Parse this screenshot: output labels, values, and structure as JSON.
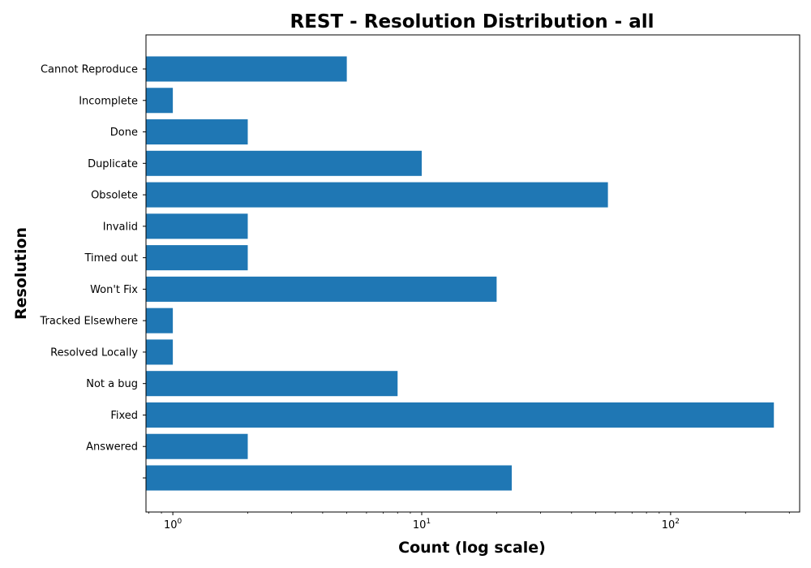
{
  "chart_data": {
    "type": "bar",
    "orientation": "horizontal",
    "title": "REST - Resolution Distribution - all",
    "xlabel": "Count (log scale)",
    "ylabel": "Resolution",
    "x_scale": "log",
    "xlim": [
      0.78,
      330
    ],
    "x_ticks": [
      {
        "value": 1,
        "base": "10",
        "exp": "0"
      },
      {
        "value": 10,
        "base": "10",
        "exp": "1"
      },
      {
        "value": 100,
        "base": "10",
        "exp": "2"
      }
    ],
    "grid": false,
    "bar_color": "#1f77b4",
    "categories": [
      "Cannot Reproduce",
      "Incomplete",
      "Done",
      "Duplicate",
      "Obsolete",
      "Invalid",
      "Timed out",
      "Won't Fix",
      "Tracked Elsewhere",
      "Resolved Locally",
      "Not a bug",
      "Fixed",
      "Answered",
      ""
    ],
    "values": [
      5,
      1,
      2,
      10,
      56,
      2,
      2,
      20,
      1,
      1,
      8,
      260,
      2,
      23
    ]
  }
}
